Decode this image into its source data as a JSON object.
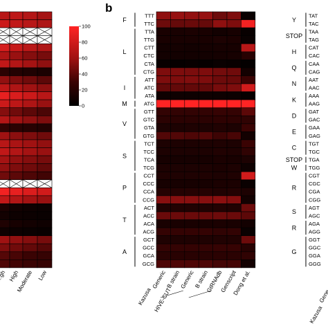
{
  "panel_label": "b",
  "chart_data": [
    {
      "type": "heatmap",
      "panel": "a (partially visible)",
      "columns": [
        "...gh",
        "High",
        "Moderate",
        "Low"
      ],
      "values": [
        [
          70,
          72,
          68,
          62
        ],
        [
          78,
          74,
          70,
          66
        ],
        [
          null,
          null,
          null,
          null
        ],
        [
          null,
          null,
          null,
          null
        ],
        [
          82,
          76,
          70,
          66
        ],
        [
          66,
          58,
          52,
          48
        ],
        [
          74,
          68,
          62,
          55
        ],
        [
          22,
          18,
          16,
          14
        ],
        [
          56,
          50,
          46,
          40
        ],
        [
          72,
          66,
          60,
          55
        ],
        [
          90,
          84,
          78,
          70
        ],
        [
          78,
          72,
          66,
          58
        ],
        [
          52,
          46,
          40,
          35
        ],
        [
          68,
          60,
          55,
          50
        ],
        [
          26,
          22,
          20,
          18
        ],
        [
          60,
          54,
          50,
          46
        ],
        [
          70,
          64,
          60,
          56
        ],
        [
          74,
          68,
          62,
          58
        ],
        [
          62,
          56,
          52,
          48
        ],
        [
          56,
          50,
          46,
          42
        ],
        [
          46,
          40,
          36,
          32
        ],
        [
          null,
          null,
          null,
          null
        ],
        [
          95,
          90,
          85,
          80
        ],
        [
          74,
          68,
          62,
          58
        ],
        [
          14,
          10,
          8,
          6
        ],
        [
          10,
          7,
          6,
          5
        ],
        [
          16,
          12,
          10,
          8
        ],
        [
          8,
          6,
          5,
          4
        ],
        [
          60,
          56,
          52,
          48
        ],
        [
          50,
          46,
          42,
          38
        ],
        [
          38,
          34,
          30,
          28
        ],
        [
          36,
          32,
          30,
          28
        ]
      ]
    },
    {
      "type": "heatmap",
      "panel": "b",
      "columns": [
        "Generic",
        "B strain",
        "Generic",
        "B strain",
        "GtRNAdb",
        "Genscript",
        "Dong et al."
      ],
      "column_groups": [
        {
          "label": "Kazusa",
          "columns": [
            0,
            1
          ]
        },
        {
          "label": "HIVE-CUT",
          "columns": [
            2,
            3
          ]
        }
      ],
      "colorbar": {
        "min": 0,
        "max": 100,
        "ticks": [
          0,
          20,
          40,
          60,
          80,
          100
        ]
      },
      "codons": [
        "TTT",
        "TTC",
        "TTA",
        "TTG",
        "CTT",
        "CTC",
        "CTA",
        "CTG",
        "ATT",
        "ATC",
        "ATA",
        "ATG",
        "GTT",
        "GTC",
        "GTA",
        "GTG",
        "TCT",
        "TCC",
        "TCA",
        "TCG",
        "CCT",
        "CCC",
        "CCA",
        "CCG",
        "ACT",
        "ACC",
        "ACA",
        "ACG",
        "GCT",
        "GCC",
        "GCA",
        "GCG"
      ],
      "amino_acid_groups": [
        {
          "label": "F",
          "start": 0,
          "end": 1
        },
        {
          "label": "L",
          "start": 2,
          "end": 7
        },
        {
          "label": "I",
          "start": 8,
          "end": 10
        },
        {
          "label": "M",
          "start": 11,
          "end": 11
        },
        {
          "label": "V",
          "start": 12,
          "end": 15
        },
        {
          "label": "S",
          "start": 16,
          "end": 19
        },
        {
          "label": "P",
          "start": 20,
          "end": 23
        },
        {
          "label": "T",
          "start": 24,
          "end": 27
        },
        {
          "label": "A",
          "start": 28,
          "end": 31
        }
      ],
      "values": [
        [
          55,
          57,
          56,
          57,
          45,
          50,
          5
        ],
        [
          45,
          43,
          44,
          43,
          55,
          50,
          95
        ],
        [
          13,
          13,
          14,
          13,
          10,
          12,
          4
        ],
        [
          13,
          13,
          13,
          13,
          15,
          14,
          5
        ],
        [
          10,
          11,
          10,
          11,
          12,
          12,
          70
        ],
        [
          10,
          10,
          10,
          10,
          11,
          12,
          20
        ],
        [
          4,
          3,
          4,
          3,
          5,
          4,
          2
        ],
        [
          50,
          50,
          49,
          50,
          47,
          46,
          10
        ],
        [
          50,
          50,
          51,
          50,
          45,
          44,
          30
        ],
        [
          42,
          42,
          42,
          42,
          48,
          50,
          80
        ],
        [
          8,
          8,
          7,
          8,
          7,
          6,
          3
        ],
        [
          100,
          100,
          100,
          100,
          100,
          100,
          100
        ],
        [
          26,
          26,
          26,
          26,
          28,
          27,
          40
        ],
        [
          22,
          22,
          22,
          22,
          24,
          24,
          25
        ],
        [
          15,
          15,
          16,
          15,
          17,
          15,
          30
        ],
        [
          37,
          37,
          36,
          37,
          31,
          34,
          10
        ],
        [
          15,
          15,
          15,
          15,
          16,
          15,
          30
        ],
        [
          15,
          15,
          15,
          15,
          17,
          16,
          25
        ],
        [
          12,
          12,
          12,
          12,
          14,
          13,
          15
        ],
        [
          15,
          15,
          15,
          15,
          14,
          15,
          8
        ],
        [
          16,
          16,
          16,
          16,
          15,
          16,
          80
        ],
        [
          12,
          12,
          12,
          12,
          14,
          14,
          5
        ],
        [
          19,
          19,
          19,
          19,
          17,
          18,
          15
        ],
        [
          53,
          53,
          53,
          53,
          54,
          52,
          10
        ],
        [
          17,
          17,
          17,
          17,
          18,
          17,
          45
        ],
        [
          44,
          44,
          44,
          44,
          45,
          44,
          40
        ],
        [
          13,
          13,
          13,
          13,
          14,
          13,
          10
        ],
        [
          27,
          27,
          27,
          27,
          25,
          26,
          5
        ],
        [
          16,
          16,
          16,
          16,
          17,
          17,
          45
        ],
        [
          27,
          27,
          27,
          27,
          28,
          28,
          20
        ],
        [
          21,
          21,
          21,
          21,
          22,
          22,
          25
        ],
        [
          36,
          36,
          36,
          36,
          33,
          33,
          10
        ]
      ]
    },
    {
      "type": "table",
      "panel": "c (partially visible, codon list)",
      "codons": [
        "TAT",
        "TAC",
        "TAA",
        "TAG",
        "CAT",
        "CAC",
        "CAA",
        "CAG",
        "AAT",
        "AAC",
        "AAA",
        "AAG",
        "GAT",
        "GAC",
        "GAA",
        "GAG",
        "TGT",
        "TGC",
        "TGA",
        "TGG",
        "CGT",
        "CGC",
        "CGA",
        "CGG",
        "AGT",
        "AGC",
        "AGA",
        "AGG",
        "GGT",
        "GGC",
        "GGA",
        "GGG"
      ],
      "amino_acid_groups": [
        {
          "label": "Y",
          "start": 0,
          "end": 1
        },
        {
          "label": "STOP",
          "start": 2,
          "end": 3
        },
        {
          "label": "H",
          "start": 4,
          "end": 5
        },
        {
          "label": "Q",
          "start": 6,
          "end": 7
        },
        {
          "label": "N",
          "start": 8,
          "end": 9
        },
        {
          "label": "K",
          "start": 10,
          "end": 11
        },
        {
          "label": "D",
          "start": 12,
          "end": 13
        },
        {
          "label": "E",
          "start": 14,
          "end": 15
        },
        {
          "label": "C",
          "start": 16,
          "end": 17
        },
        {
          "label": "STOP",
          "start": 18,
          "end": 18
        },
        {
          "label": "W",
          "start": 19,
          "end": 19
        },
        {
          "label": "R",
          "start": 20,
          "end": 23
        },
        {
          "label": "S",
          "start": 24,
          "end": 25
        },
        {
          "label": "R",
          "start": 26,
          "end": 27
        },
        {
          "label": "G",
          "start": 28,
          "end": 31
        }
      ],
      "bottom_labels": [
        "Gene",
        "Kazusa"
      ]
    }
  ]
}
